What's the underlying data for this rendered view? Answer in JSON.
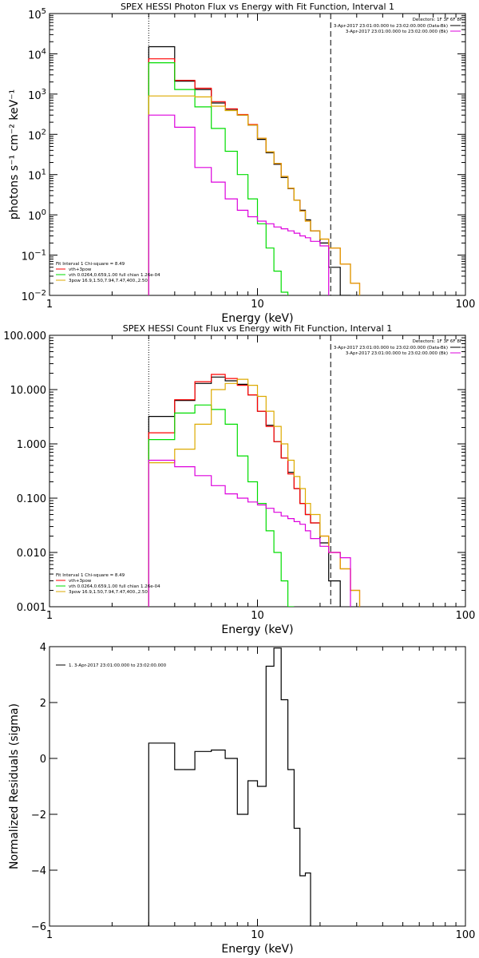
{
  "chart_data": [
    {
      "type": "step-line",
      "title": "SPEX HESSI Photon Flux vs Energy with Fit Function, Interval 1",
      "xlabel": "Energy (keV)",
      "ylabel": "photons s⁻¹ cm⁻² keV⁻¹",
      "xscale": "log",
      "yscale": "log",
      "xlim": [
        1,
        100
      ],
      "ylim": [
        0.01,
        100000
      ],
      "xticks": [
        {
          "v": 1,
          "label": "1"
        },
        {
          "v": 10,
          "label": "10"
        },
        {
          "v": 100,
          "label": "100"
        }
      ],
      "yticks": [
        {
          "v": 0.01,
          "b": "10",
          "e": "−2"
        },
        {
          "v": 0.1,
          "b": "10",
          "e": "−1"
        },
        {
          "v": 1,
          "b": "10",
          "e": "0"
        },
        {
          "v": 10,
          "b": "10",
          "e": "1"
        },
        {
          "v": 100,
          "b": "10",
          "e": "2"
        },
        {
          "v": 1000,
          "b": "10",
          "e": "3"
        },
        {
          "v": 10000,
          "b": "10",
          "e": "4"
        },
        {
          "v": 100000,
          "b": "10",
          "e": "5"
        }
      ],
      "edges": [
        3,
        4,
        5,
        6,
        7,
        8,
        9,
        10,
        11,
        12,
        13,
        14,
        15,
        16,
        17,
        18,
        20,
        22,
        25,
        28,
        31
      ],
      "vlines": [
        {
          "x": 3,
          "style": "dotted"
        },
        {
          "x": 22.5,
          "style": "dashed"
        }
      ],
      "legend_top": {
        "header": "Detectors: 1F 3F 6F 8F",
        "entries": [
          {
            "text": "3-Apr-2017 23:01:00.000 to 23:02:00.000 (Data-Bk)",
            "color": "#000000"
          },
          {
            "text": "3-Apr-2017 23:01:00.000 to 23:02:00.000 (Bk)",
            "color": "#dd00dd"
          }
        ]
      },
      "legend_bottom": {
        "header": "Fit Interval 1   Chi-square = 8.49",
        "entries": [
          {
            "text": "vth+3pow",
            "color": "#ff0000"
          },
          {
            "text": "vth 0.0264,0.659,1.00  full chian 1.26e-04",
            "color": "#00dd00"
          },
          {
            "text": "3pow 16.9,1.50,7.94,7.47,400.,2.50",
            "color": "#ddaa00"
          }
        ]
      },
      "series": [
        {
          "name": "Data-Bk",
          "color": "#000000",
          "values": [
            15000,
            2100,
            1300,
            600,
            420,
            300,
            170,
            75,
            35,
            18,
            8.5,
            4.5,
            2.3,
            1.3,
            0.75,
            0.4,
            0.2,
            0.05,
            0.01,
            null
          ]
        },
        {
          "name": "vth+3pow",
          "color": "#ff0000",
          "values": [
            7500,
            2200,
            1400,
            650,
            430,
            310,
            175,
            80,
            37,
            19,
            9,
            4.6,
            2.3,
            1.25,
            0.7,
            0.4,
            0.25,
            0.15,
            0.06,
            0.02
          ]
        },
        {
          "name": "vth",
          "color": "#00dd00",
          "values": [
            6000,
            1300,
            480,
            140,
            38,
            10,
            2.5,
            0.6,
            0.15,
            0.04,
            0.012,
            null,
            null,
            null,
            null,
            null,
            null,
            null,
            null,
            null
          ]
        },
        {
          "name": "3pow",
          "color": "#ddaa00",
          "values": [
            900,
            900,
            850,
            500,
            390,
            300,
            170,
            80,
            37,
            19,
            9,
            4.6,
            2.3,
            1.25,
            0.7,
            0.4,
            0.25,
            0.15,
            0.06,
            0.02
          ]
        },
        {
          "name": "Bk",
          "color": "#dd00dd",
          "values": [
            300,
            150,
            15,
            6.5,
            2.5,
            1.3,
            0.9,
            0.7,
            0.6,
            0.5,
            0.45,
            0.4,
            0.35,
            0.3,
            0.27,
            0.22,
            0.17,
            null,
            null,
            null
          ]
        }
      ]
    },
    {
      "type": "step-line",
      "title": "SPEX HESSI Count Flux vs Energy with Fit Function, Interval 1",
      "xlabel": "Energy (keV)",
      "ylabel": "",
      "xscale": "log",
      "yscale": "log",
      "xlim": [
        1,
        100
      ],
      "ylim": [
        0.001,
        100
      ],
      "xticks": [
        {
          "v": 1,
          "label": "1"
        },
        {
          "v": 10,
          "label": "10"
        },
        {
          "v": 100,
          "label": "100"
        }
      ],
      "yticks": [
        {
          "v": 0.001,
          "label": "0.001"
        },
        {
          "v": 0.01,
          "label": "0.010"
        },
        {
          "v": 0.1,
          "label": "0.100"
        },
        {
          "v": 1,
          "label": "1.000"
        },
        {
          "v": 10,
          "label": "10.000"
        },
        {
          "v": 100,
          "label": "100.000"
        }
      ],
      "edges": [
        3,
        4,
        5,
        6,
        7,
        8,
        9,
        10,
        11,
        12,
        13,
        14,
        15,
        16,
        17,
        18,
        20,
        22,
        25,
        28,
        31
      ],
      "vlines": [
        {
          "x": 3,
          "style": "dotted"
        },
        {
          "x": 22.5,
          "style": "dashed"
        }
      ],
      "legend_top": {
        "header": "Detectors: 1F 3F 6F 8F",
        "entries": [
          {
            "text": "3-Apr-2017 23:01:00.000 to 23:02:00.000 (Data-Bk)",
            "color": "#000000"
          },
          {
            "text": "3-Apr-2017 23:01:00.000 to 23:02:00.000 (Bk)",
            "color": "#dd00dd"
          }
        ]
      },
      "legend_bottom": {
        "header": "Fit Interval 1   Chi-square = 8.49",
        "entries": [
          {
            "text": "vth+3pow",
            "color": "#ff0000"
          },
          {
            "text": "vth 0.0264,0.659,1.00  full chian 1.26e-04",
            "color": "#00dd00"
          },
          {
            "text": "3pow 16.9,1.50,7.94,7.47,400.,2.50",
            "color": "#ddaa00"
          }
        ]
      },
      "series": [
        {
          "name": "Data-Bk",
          "color": "#000000",
          "values": [
            3.2,
            6.3,
            13,
            17,
            14.5,
            12.5,
            8,
            4,
            2.2,
            1.1,
            0.55,
            0.3,
            0.15,
            0.08,
            0.05,
            0.035,
            0.015,
            0.003,
            null,
            null
          ]
        },
        {
          "name": "vth+3pow",
          "color": "#ff0000",
          "values": [
            1.6,
            6.5,
            14,
            19,
            16,
            12,
            8,
            4,
            2.1,
            1.1,
            0.55,
            0.28,
            0.15,
            0.08,
            0.05,
            0.035,
            0.02,
            0.01,
            0.005,
            0.002
          ]
        },
        {
          "name": "vth",
          "color": "#00dd00",
          "values": [
            1.2,
            3.7,
            5.2,
            4.3,
            2.3,
            0.6,
            0.2,
            0.08,
            0.025,
            0.01,
            0.003,
            0.001,
            null,
            null,
            null,
            null,
            null,
            null,
            null,
            null
          ]
        },
        {
          "name": "3pow",
          "color": "#ddaa00",
          "values": [
            0.45,
            0.8,
            2.3,
            10,
            13,
            15.5,
            12,
            7.5,
            4,
            2.1,
            1,
            0.5,
            0.25,
            0.15,
            0.08,
            0.05,
            0.02,
            0.01,
            0.005,
            0.002
          ]
        },
        {
          "name": "Bk",
          "color": "#dd00dd",
          "values": [
            0.5,
            0.38,
            0.26,
            0.17,
            0.12,
            0.1,
            0.085,
            0.075,
            0.065,
            0.055,
            0.047,
            0.042,
            0.037,
            0.033,
            0.025,
            0.018,
            0.013,
            0.01,
            0.008,
            null
          ]
        }
      ]
    },
    {
      "type": "step-line",
      "title": "",
      "xlabel": "Energy (keV)",
      "ylabel": "Normalized Residuals (sigma)",
      "xscale": "log",
      "yscale": "linear",
      "xlim": [
        1,
        100
      ],
      "ylim": [
        -6,
        4
      ],
      "xticks": [
        {
          "v": 1,
          "label": "1"
        },
        {
          "v": 10,
          "label": "10"
        },
        {
          "v": 100,
          "label": "100"
        }
      ],
      "yticks": [
        {
          "v": 4,
          "label": "4"
        },
        {
          "v": 2,
          "label": "2"
        },
        {
          "v": 0,
          "label": "0"
        },
        {
          "v": -2,
          "label": "−2"
        },
        {
          "v": -4,
          "label": "−4"
        },
        {
          "v": -6,
          "label": "−6"
        }
      ],
      "edges": [
        3,
        4,
        5,
        6,
        7,
        8,
        9,
        10,
        11,
        12,
        13,
        14,
        15,
        16,
        17,
        18,
        20,
        22
      ],
      "legend_top": {
        "header": "",
        "entries": [
          {
            "text": "1. 3-Apr-2017 23:01:00.000 to 23:02:00.000",
            "color": "#000000"
          }
        ]
      },
      "series": [
        {
          "name": "1. 3-Apr-2017 23:01:00.000 to 23:02:00.000",
          "color": "#000000",
          "baseline": -6,
          "values": [
            0.55,
            -0.4,
            0.25,
            0.3,
            0.0,
            -2.0,
            -0.8,
            -1.0,
            3.3,
            3.95,
            2.1,
            -0.4,
            -2.5,
            -4.2,
            -4.1,
            null,
            null
          ]
        }
      ]
    }
  ]
}
